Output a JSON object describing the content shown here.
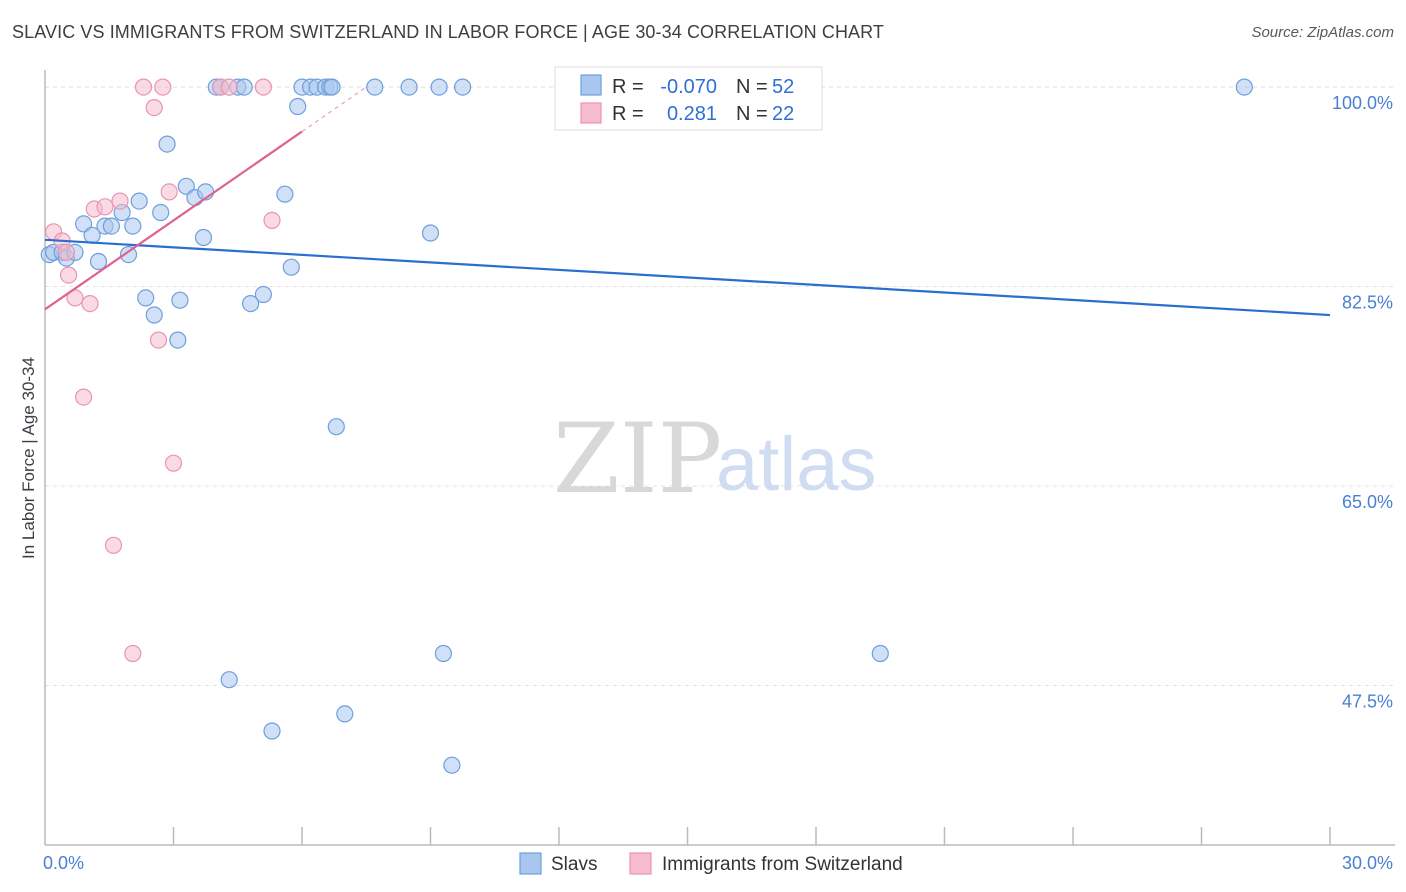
{
  "title": "SLAVIC VS IMMIGRANTS FROM SWITZERLAND IN LABOR FORCE | AGE 30-34 CORRELATION CHART",
  "source": "Source: ZipAtlas.com",
  "watermark": {
    "zip": "ZIP",
    "atlas": "atlas"
  },
  "colors": {
    "slavs_fill": "#a9c6ee",
    "slavs_stroke": "#6f9fdc",
    "slavs_line": "#2a6fce",
    "swiss_fill": "#f6bccd",
    "swiss_stroke": "#e895b0",
    "swiss_line": "#e0628e",
    "grid": "#e3e3e3",
    "axis": "#bbbbbb",
    "tick_label": "#4a7fd4"
  },
  "legend_stats": {
    "slavs": {
      "r_label": "R =",
      "r_value": "-0.070",
      "n_label": "N =",
      "n_value": "52"
    },
    "swiss": {
      "r_label": "R =",
      "r_value": "0.281",
      "n_label": "N =",
      "n_value": "22"
    }
  },
  "chart_data": {
    "type": "scatter",
    "title": "SLAVIC VS IMMIGRANTS FROM SWITZERLAND IN LABOR FORCE | AGE 30-34 CORRELATION CHART",
    "xlabel": "",
    "ylabel": "In Labor Force | Age 30-34",
    "xlim": [
      0,
      30
    ],
    "ylim": [
      33.5,
      101.5
    ],
    "x_tick_labels": [
      {
        "value": 0,
        "label": "0.0%"
      },
      {
        "value": 30,
        "label": "30.0%"
      }
    ],
    "y_ticks": [
      {
        "value": 100,
        "label": "100.0%"
      },
      {
        "value": 82.5,
        "label": "82.5%"
      },
      {
        "value": 65,
        "label": "65.0%"
      },
      {
        "value": 47.5,
        "label": "47.5%"
      }
    ],
    "x_minor_ticks": [
      3,
      6,
      9,
      12,
      15,
      18,
      21,
      24,
      27,
      30
    ],
    "grid": true,
    "legend_position": "bottom",
    "series": [
      {
        "name": "Slavs",
        "points": [
          [
            0.1,
            85.3
          ],
          [
            0.2,
            85.5
          ],
          [
            0.4,
            85.5
          ],
          [
            0.5,
            85.0
          ],
          [
            0.7,
            85.5
          ],
          [
            0.9,
            88.0
          ],
          [
            1.1,
            87.0
          ],
          [
            1.25,
            84.7
          ],
          [
            1.4,
            87.8
          ],
          [
            1.55,
            87.8
          ],
          [
            1.8,
            89.0
          ],
          [
            1.95,
            85.3
          ],
          [
            2.05,
            87.8
          ],
          [
            2.2,
            90.0
          ],
          [
            2.35,
            81.5
          ],
          [
            2.55,
            80.0
          ],
          [
            2.7,
            89.0
          ],
          [
            2.85,
            95.0
          ],
          [
            3.1,
            77.8
          ],
          [
            3.15,
            81.3
          ],
          [
            3.3,
            91.3
          ],
          [
            3.5,
            90.3
          ],
          [
            3.7,
            86.8
          ],
          [
            3.75,
            90.8
          ],
          [
            4.0,
            100.0
          ],
          [
            4.1,
            100.0
          ],
          [
            4.3,
            48.0
          ],
          [
            4.5,
            100.0
          ],
          [
            4.65,
            100.0
          ],
          [
            4.8,
            81.0
          ],
          [
            5.1,
            81.8
          ],
          [
            5.3,
            43.5
          ],
          [
            5.6,
            90.6
          ],
          [
            5.75,
            84.2
          ],
          [
            5.9,
            98.3
          ],
          [
            6.0,
            100.0
          ],
          [
            6.2,
            100.0
          ],
          [
            6.35,
            100.0
          ],
          [
            6.55,
            100.0
          ],
          [
            6.65,
            100.0
          ],
          [
            6.7,
            100.0
          ],
          [
            6.8,
            70.2
          ],
          [
            7.0,
            45.0
          ],
          [
            7.7,
            100.0
          ],
          [
            8.5,
            100.0
          ],
          [
            9.0,
            87.2
          ],
          [
            9.2,
            100.0
          ],
          [
            9.3,
            50.3
          ],
          [
            9.5,
            40.5
          ],
          [
            9.75,
            100.0
          ],
          [
            19.5,
            50.3
          ],
          [
            28.0,
            100.0
          ]
        ],
        "trend": {
          "x": [
            0,
            30
          ],
          "y": [
            86.6,
            80.0
          ]
        }
      },
      {
        "name": "Immigrants from Switzerland",
        "points": [
          [
            0.2,
            87.3
          ],
          [
            0.4,
            86.5
          ],
          [
            0.5,
            85.5
          ],
          [
            0.55,
            83.5
          ],
          [
            0.7,
            81.5
          ],
          [
            0.9,
            72.8
          ],
          [
            1.05,
            81.0
          ],
          [
            1.15,
            89.3
          ],
          [
            1.4,
            89.5
          ],
          [
            1.6,
            59.8
          ],
          [
            1.75,
            90.0
          ],
          [
            2.05,
            50.3
          ],
          [
            2.3,
            100.0
          ],
          [
            2.55,
            98.2
          ],
          [
            2.75,
            100.0
          ],
          [
            2.65,
            77.8
          ],
          [
            2.9,
            90.8
          ],
          [
            3.0,
            67.0
          ],
          [
            4.1,
            100.0
          ],
          [
            4.3,
            100.0
          ],
          [
            5.1,
            100.0
          ],
          [
            5.3,
            88.3
          ]
        ],
        "trend": {
          "x": [
            0,
            6.0
          ],
          "y": [
            80.5,
            96.1
          ]
        },
        "trend_extension": {
          "x": [
            6.0,
            7.5
          ],
          "y": [
            96.1,
            100.0
          ]
        }
      }
    ]
  }
}
